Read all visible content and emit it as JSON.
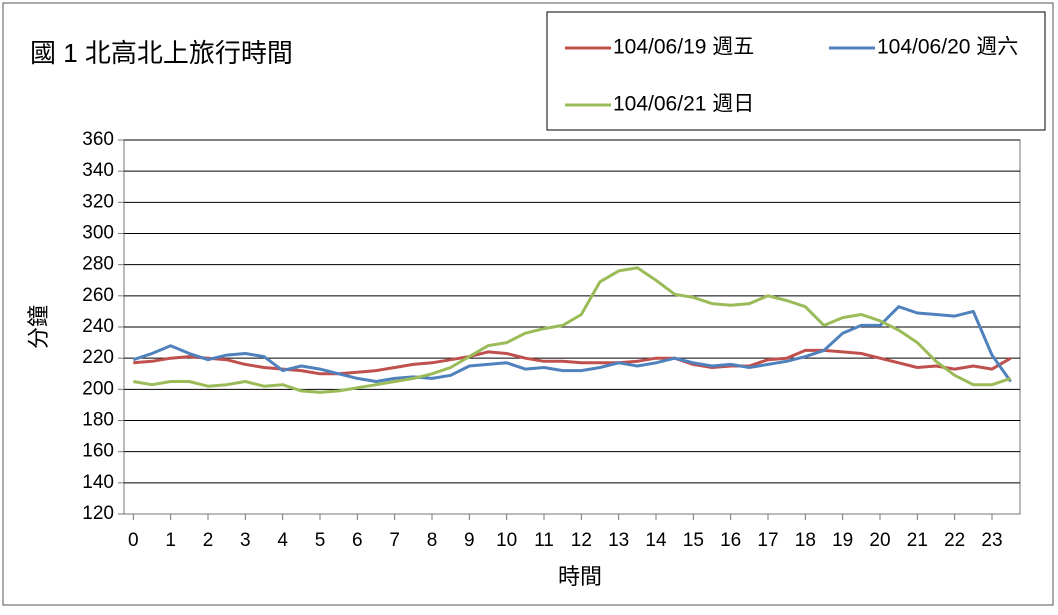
{
  "chart_data": {
    "type": "line",
    "title": "國 1 北高北上旅行時間",
    "y_label": "分鐘",
    "x_label": "時間",
    "categories": [
      "0",
      null,
      "1",
      null,
      "2",
      null,
      "3",
      null,
      "4",
      null,
      "5",
      null,
      "6",
      null,
      "7",
      null,
      "8",
      null,
      "9",
      null,
      "10",
      null,
      "11",
      null,
      "12",
      null,
      "13",
      null,
      "14",
      null,
      "15",
      null,
      "16",
      null,
      "17",
      null,
      "18",
      null,
      "19",
      null,
      "20",
      null,
      "21",
      null,
      "22",
      null,
      "23",
      null
    ],
    "series": [
      {
        "name": "104/06/19 週五",
        "color": "#c0504d",
        "values": [
          217,
          218,
          220,
          221,
          220,
          219,
          216,
          214,
          213,
          212,
          210,
          210,
          211,
          212,
          214,
          216,
          217,
          219,
          221,
          224,
          223,
          220,
          218,
          218,
          217,
          217,
          217,
          218,
          220,
          220,
          216,
          214,
          215,
          215,
          219,
          220,
          225,
          225,
          224,
          223,
          220,
          217,
          214,
          215,
          213,
          215,
          213,
          220
        ]
      },
      {
        "name": "104/06/20 週六",
        "color": "#4f81bd",
        "values": [
          219,
          223,
          228,
          223,
          219,
          222,
          223,
          221,
          212,
          215,
          213,
          210,
          207,
          205,
          207,
          208,
          207,
          209,
          215,
          216,
          217,
          213,
          214,
          212,
          212,
          214,
          217,
          215,
          217,
          220,
          217,
          215,
          216,
          214,
          216,
          218,
          221,
          225,
          236,
          241,
          241,
          253,
          249,
          248,
          247,
          250,
          222,
          205
        ]
      },
      {
        "name": "104/06/21 週日",
        "color": "#9bbb59",
        "values": [
          205,
          203,
          205,
          205,
          202,
          203,
          205,
          202,
          203,
          199,
          198,
          199,
          201,
          203,
          205,
          207,
          210,
          214,
          221,
          228,
          230,
          236,
          239,
          241,
          248,
          269,
          276,
          278,
          270,
          261,
          259,
          255,
          254,
          255,
          260,
          257,
          253,
          241,
          246,
          248,
          244,
          238,
          230,
          218,
          209,
          203,
          203,
          207
        ]
      }
    ],
    "ylim": [
      120,
      360
    ],
    "yticks": [
      120,
      140,
      160,
      180,
      200,
      220,
      240,
      260,
      280,
      300,
      320,
      340,
      360
    ],
    "grid": true,
    "legend": "top-right"
  }
}
